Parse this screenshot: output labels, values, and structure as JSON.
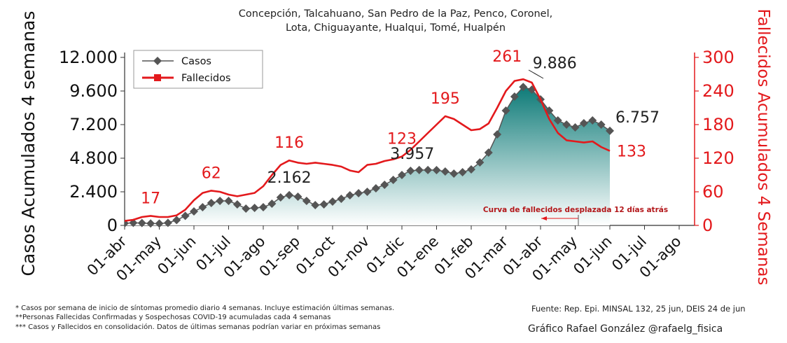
{
  "title_lines": [
    "Concepción, Talcahuano, San Pedro de la Paz, Penco, Coronel,",
    "Lota, Chiguayante, Hualqui, Tomé, Hualpén"
  ],
  "chart_data": {
    "type": "line",
    "x_unit": "months since 01-abr",
    "x_tick_labels": [
      "01-abr",
      "01-may",
      "01-jun",
      "01-jul",
      "01-ago",
      "01-sep",
      "01-oct",
      "01-nov",
      "01-dic",
      "01-ene",
      "01-feb",
      "01-mar",
      "01-abr",
      "01-may",
      "01-jun",
      "01-jul",
      "01-ago"
    ],
    "xlim": [
      0,
      16
    ],
    "y_left": {
      "label": "Casos Acumulados 4 semanas",
      "ticks": [
        "0",
        "2.400",
        "4.800",
        "7.200",
        "9.600",
        "12.000"
      ],
      "range": [
        0,
        12000
      ]
    },
    "y_right": {
      "label": "Fallecidos Acumulados 4 Semanas",
      "ticks": [
        "0",
        "60",
        "120",
        "180",
        "240",
        "300"
      ],
      "range": [
        0,
        300
      ]
    },
    "grid": false,
    "legend_position": "top-left",
    "series": [
      {
        "name": "Casos",
        "axis": "left",
        "color": "#555555",
        "marker": "diamond",
        "fill_gradient": [
          "#0e7b78",
          "#ffffff"
        ],
        "x": [
          0,
          0.25,
          0.5,
          0.75,
          1,
          1.25,
          1.5,
          1.75,
          2,
          2.25,
          2.5,
          2.75,
          3,
          3.25,
          3.5,
          3.75,
          4,
          4.25,
          4.5,
          4.75,
          5,
          5.25,
          5.5,
          5.75,
          6,
          6.25,
          6.5,
          6.75,
          7,
          7.25,
          7.5,
          7.75,
          8,
          8.25,
          8.5,
          8.75,
          9,
          9.25,
          9.5,
          9.75,
          10,
          10.25,
          10.5,
          10.75,
          11,
          11.25,
          11.5,
          11.75,
          12,
          12.25,
          12.5,
          12.75,
          13,
          13.25,
          13.5,
          13.75,
          14,
          14.25,
          14.5,
          14.75
        ],
        "y": [
          150,
          180,
          170,
          140,
          130,
          180,
          380,
          680,
          1000,
          1300,
          1600,
          1750,
          1750,
          1500,
          1200,
          1250,
          1300,
          1550,
          2000,
          2162,
          2050,
          1750,
          1450,
          1500,
          1700,
          1900,
          2150,
          2300,
          2400,
          2650,
          2900,
          3250,
          3600,
          3900,
          3957,
          3957,
          3950,
          3850,
          3700,
          3800,
          4000,
          4500,
          5200,
          6500,
          8200,
          9200,
          9886,
          9700,
          9000,
          8200,
          7500,
          7200,
          7000,
          7300,
          7500,
          7200,
          6757,
          null,
          null,
          null
        ]
      },
      {
        "name": "Fallecidos",
        "axis": "right",
        "color": "#e3191c",
        "marker": "none",
        "x": [
          0,
          0.25,
          0.5,
          0.75,
          1,
          1.25,
          1.5,
          1.75,
          2,
          2.25,
          2.5,
          2.75,
          3,
          3.25,
          3.5,
          3.75,
          4,
          4.25,
          4.5,
          4.75,
          5,
          5.25,
          5.5,
          5.75,
          6,
          6.25,
          6.5,
          6.75,
          7,
          7.25,
          7.5,
          7.75,
          8,
          8.25,
          8.5,
          8.75,
          9,
          9.25,
          9.5,
          9.75,
          10,
          10.25,
          10.5,
          10.75,
          11,
          11.25,
          11.5,
          11.75,
          12,
          12.25,
          12.5,
          12.75,
          13,
          13.25,
          13.5,
          13.75,
          14,
          14.25,
          14.5,
          14.75
        ],
        "y": [
          8,
          10,
          15,
          17,
          15,
          15,
          18,
          28,
          45,
          58,
          62,
          60,
          55,
          52,
          55,
          58,
          70,
          90,
          108,
          116,
          112,
          110,
          112,
          110,
          108,
          105,
          98,
          95,
          108,
          110,
          115,
          118,
          123,
          135,
          150,
          165,
          180,
          195,
          190,
          180,
          170,
          172,
          182,
          210,
          240,
          258,
          261,
          255,
          225,
          190,
          165,
          152,
          150,
          148,
          150,
          140,
          133,
          null,
          null,
          null
        ]
      }
    ],
    "annotations": [
      {
        "text": "17",
        "series": "Fallecidos",
        "x": 0.75,
        "y": 17
      },
      {
        "text": "62",
        "series": "Fallecidos",
        "x": 2.5,
        "y": 62
      },
      {
        "text": "116",
        "series": "Fallecidos",
        "x": 4.75,
        "y": 116
      },
      {
        "text": "123",
        "series": "Fallecidos",
        "x": 8,
        "y": 123
      },
      {
        "text": "195",
        "series": "Fallecidos",
        "x": 9.25,
        "y": 195
      },
      {
        "text": "261",
        "series": "Fallecidos",
        "x": 11.5,
        "y": 261
      },
      {
        "text": "133",
        "series": "Fallecidos",
        "x": 14,
        "y": 133
      },
      {
        "text": "2.162",
        "series": "Casos",
        "x": 4.75,
        "y": 2162
      },
      {
        "text": "3.957",
        "series": "Casos",
        "x": 8.5,
        "y": 3957
      },
      {
        "text": "9.886",
        "series": "Casos",
        "x": 11.5,
        "y": 9886
      },
      {
        "text": "6.757",
        "series": "Casos",
        "x": 14,
        "y": 6757
      }
    ],
    "shift_note": "Curva de fallecidos desplazada 12 días atrás"
  },
  "footnotes": [
    "* Casos por semana de inicio de síntomas promedio diario 4 semanas. Incluye estimación últimas semanas.",
    "**Personas Fallecidas Confirmadas y Sospechosas COVID-19 acumuladas cada 4 semanas",
    "*** Casos y Fallecidos en consolidación. Datos de últimas semanas podrían variar en próximas semanas"
  ],
  "source": "Fuente: Rep. Epi. MINSAL 132, 25 jun, DEIS 24 de jun",
  "credit": "Gráfico Rafael González @rafaelg_fisica"
}
